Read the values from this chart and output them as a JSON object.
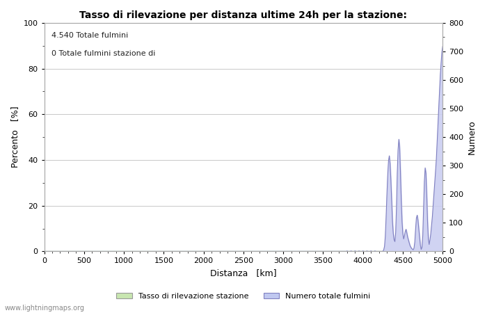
{
  "title": "Tasso di rilevazione per distanza ultime 24h per la stazione:",
  "annotation_line1": "4.540 Totale fulmini",
  "annotation_line2": "0 Totale fulmini stazione di",
  "xlabel": "Distanza   [km]",
  "ylabel_left": "Percento   [%]",
  "ylabel_right": "Numero",
  "xlim": [
    0,
    5000
  ],
  "ylim_left": [
    0,
    100
  ],
  "ylim_right": [
    0,
    800
  ],
  "xticks": [
    0,
    500,
    1000,
    1500,
    2000,
    2500,
    3000,
    3500,
    4000,
    4500,
    5000
  ],
  "yticks_left": [
    0,
    20,
    40,
    60,
    80,
    100
  ],
  "yticks_right": [
    0,
    100,
    200,
    300,
    400,
    500,
    600,
    700,
    800
  ],
  "legend_label1": "Tasso di rilevazione stazione",
  "legend_label2": "Numero totale fulmini",
  "legend_color1": "#c8e6b0",
  "legend_color2": "#c0c8f0",
  "line_color": "#8080c0",
  "fill_color": "#c8ccf0",
  "grid_color": "#c8c8c8",
  "background_color": "#ffffff",
  "watermark": "www.lightningmaps.org",
  "title_fontsize": 10,
  "axis_label_fontsize": 9,
  "tick_fontsize": 8,
  "annotation_fontsize": 8,
  "watermark_fontsize": 7,
  "legend_fontsize": 8
}
